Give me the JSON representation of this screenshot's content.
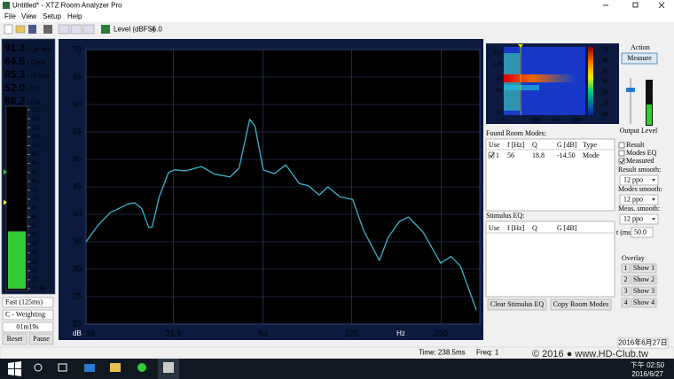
{
  "window": {
    "title": "Untitled* - XTZ Room Analyzer Pro"
  },
  "menu": [
    "File",
    "View",
    "Setup",
    "Help"
  ],
  "toolbar": {
    "level_label": "Level (dBFS)",
    "level_value": "-6.0"
  },
  "meter": {
    "readings": [
      {
        "value": 91.3,
        "unit": "LCpk hold"
      },
      {
        "value": 64.6,
        "unit": "LCpeak"
      },
      {
        "value": 85.3,
        "unit": "LCF hold"
      },
      {
        "value": {
          "value": 52,
          "label": "52.0"
        },
        "unit": "LCF"
      },
      {
        "value": 68.2,
        "unit": "LCeq"
      }
    ],
    "ylim": [
      20,
      120
    ],
    "ticks": [
      120,
      115,
      110,
      105,
      100,
      95,
      90,
      85,
      80,
      75,
      70,
      65,
      60,
      55,
      50,
      45,
      40,
      35,
      30,
      25,
      {
        "value": 20,
        "label": "20 dB"
      }
    ],
    "response": "Fast (125ms)",
    "weighting": "C - Weighting",
    "elapsed": "01m19s",
    "buttons": [
      "Reset",
      "Pause"
    ]
  },
  "graph": {
    "type": "line",
    "x_unit": "Hz",
    "y_unit": "dB",
    "xlog": true,
    "grid": true,
    "color": "#3cb4cc",
    "xlim": [
      16,
      337
    ],
    "ylim": [
      20,
      70
    ],
    "xticks": [
      16,
      31.5,
      63,
      125,
      250
    ],
    "yticks": [
      20,
      25,
      30,
      35,
      40,
      45,
      50,
      55,
      60,
      65,
      70
    ],
    "x": [
      16,
      17.5,
      19.3,
      22.2,
      23.3,
      24.6,
      26.0,
      26.7,
      28.2,
      30.3,
      31.7,
      34.5,
      39.1,
      43.3,
      48.8,
      52.3,
      56.8,
      59.2,
      63.1,
      68.7,
      75.1,
      83.4,
      89.4,
      97.2,
      104,
      114,
      126,
      137,
      155,
      166,
      181,
      194,
      217,
      249,
      270,
      290,
      328
    ],
    "values": [
      35.0,
      37.9,
      40.3,
      41.9,
      42.1,
      41.1,
      37.6,
      37.7,
      43.2,
      47.6,
      48.1,
      47.9,
      48.7,
      47.3,
      46.8,
      48.4,
      57.3,
      56.0,
      48.1,
      47.4,
      49.0,
      45.6,
      45.2,
      43.5,
      45.0,
      43.2,
      42.7,
      37.1,
      31.6,
      35.8,
      38.7,
      39.5,
      36.8,
      31.1,
      32.3,
      30.6,
      22.6
    ]
  },
  "spectrogram": {
    "y_labels": [
      "250",
      "125",
      "63",
      "Hz",
      "20"
    ],
    "x_labels": [
      "0",
      "100",
      "ms",
      "200"
    ],
    "scale_labels": [
      "70",
      "60",
      "50",
      "40",
      "30",
      "20",
      "dB"
    ]
  },
  "action": {
    "title": "Action",
    "button": "Measure",
    "output": "Output Level"
  },
  "room_modes": {
    "title": "Found Room Modes:",
    "headers": [
      "Use",
      "f [Hz]",
      "Q",
      "G [dB]",
      "Type"
    ],
    "rows": [
      [
        "1",
        "56",
        "18.8",
        "-14.50",
        "Mode"
      ]
    ]
  },
  "options": {
    "checks": [
      "Result",
      "Modes EQ",
      "Measured"
    ],
    "result_smooth": "Result smooth:",
    "modes_smooth": "Modes smooth:",
    "meas_smooth": "Meas. smooth:",
    "smooth_values": [
      "12 ppo",
      "12 ppo",
      "12 ppo"
    ],
    "t_label": "t (ms)",
    "t_value": "50.0",
    "overlay": "Overlay",
    "overlay_buttons": [
      [
        "1",
        "Show 1"
      ],
      [
        "2",
        "Show 2"
      ],
      [
        "3",
        "Show 3"
      ],
      [
        "4",
        "Show 4"
      ]
    ]
  },
  "stimulus": {
    "title": "Stimulus EQ:",
    "headers": [
      "Use",
      "f [Hz]",
      "Q",
      "G [dB]"
    ]
  },
  "buttons": [
    "Clear Stimulus EQ",
    "Copy Room Modes"
  ],
  "status": {
    "time": "Time: 238.5ms",
    "freq": "Freq: 1"
  },
  "watermark": "© 2016 ● www.HD-Club.tw",
  "taskbar": {
    "tooltip": "2016年6月27日",
    "time": "下午 02:50",
    "date": "2016/6/27"
  }
}
